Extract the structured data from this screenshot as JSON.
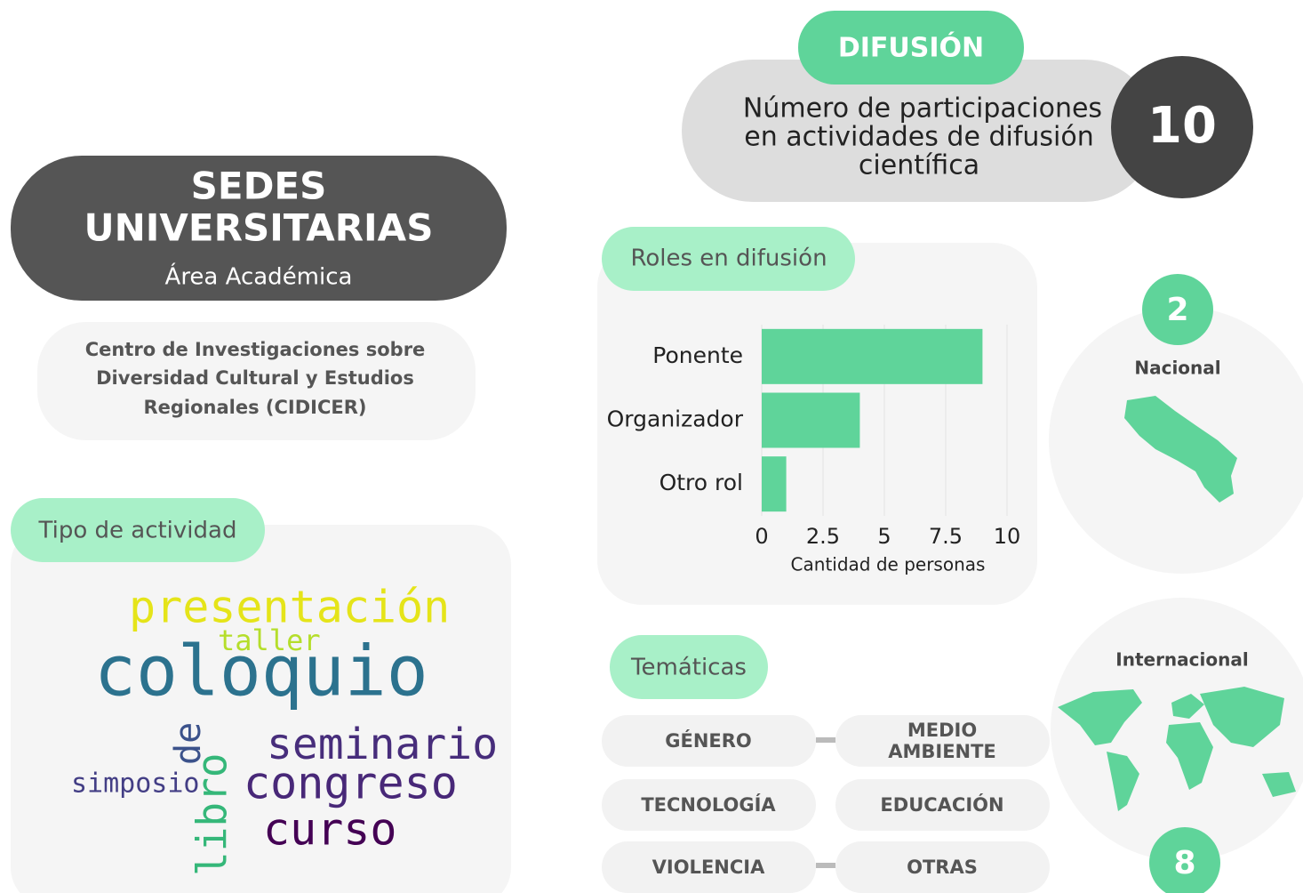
{
  "header": {
    "title_lines": [
      "SEDES",
      "UNIVERSITARIAS"
    ],
    "subtitle": "Área Académica"
  },
  "unit": {
    "lines": [
      "Centro de Investigaciones sobre",
      "Diversidad Cultural y Estudios",
      "Regionales (CIDICER)"
    ]
  },
  "tipo_actividad": {
    "label": "Tipo de actividad",
    "words": [
      "presentación",
      "taller",
      "coloquio",
      "de",
      "libro",
      "seminario",
      "simposio",
      "congreso",
      "curso"
    ]
  },
  "difusion": {
    "label": "DIFUSIÓN",
    "description_lines": [
      "Número de participaciones",
      "en actividades de difusión",
      "científica"
    ],
    "total": 10
  },
  "chart_data": {
    "type": "bar",
    "orientation": "horizontal",
    "title": "Roles en difusión",
    "categories": [
      "Ponente",
      "Organizador",
      "Otro rol"
    ],
    "values": [
      9,
      4,
      1
    ],
    "color": "#5fd49a",
    "xlim": [
      0,
      10
    ],
    "xticks": [
      0,
      2.5,
      5,
      7.5,
      10
    ],
    "xlabel": "Cantidad de personas",
    "grid": true
  },
  "nacional": {
    "label": "Nacional",
    "count": 2
  },
  "internacional": {
    "label": "Internacional",
    "count": 8
  },
  "tematicas": {
    "label": "Temáticas",
    "topics": [
      [
        "GÉNERO"
      ],
      [
        "MEDIO",
        "AMBIENTE"
      ],
      [
        "TECNOLOGÍA"
      ],
      [
        "EDUCACIÓN"
      ],
      [
        "VIOLENCIA"
      ],
      [
        "OTRAS"
      ]
    ]
  }
}
